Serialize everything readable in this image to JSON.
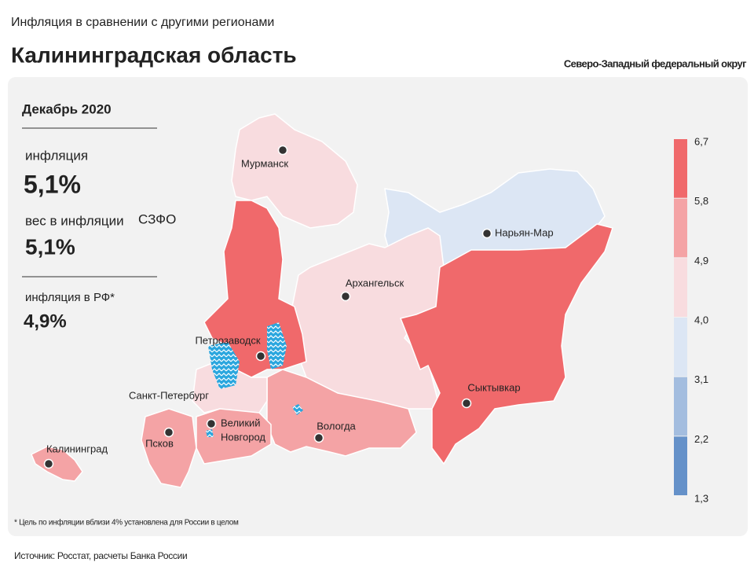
{
  "header": {
    "subtitle": "Инфляция в сравнении с другими регионами",
    "title": "Калининградская область",
    "district": "Северо-Западный федеральный округ"
  },
  "panel": {
    "period": "Декабрь 2020",
    "stats": [
      {
        "label": "инфляция",
        "value": "5,1%"
      },
      {
        "label": "вес в инфляции",
        "label_suffix": "СЗФО",
        "value": "5,1%"
      },
      {
        "label": "инфляция в РФ*",
        "value": "4,9%"
      }
    ]
  },
  "legend": {
    "ticks": [
      "6,7",
      "5,8",
      "4,9",
      "4,0",
      "3,1",
      "2,2",
      "1,3"
    ],
    "colors": [
      "#f0696b",
      "#f4a3a5",
      "#f8dcdf",
      "#dce6f4",
      "#a3bddf",
      "#6591c9"
    ]
  },
  "cities": [
    "Мурманск",
    "Нарьян-Мар",
    "Архангельск",
    "Петрозаводск",
    "Санкт-Петербург",
    "Сыктывкар",
    "Великий",
    "Новгород",
    "Вологда",
    "Псков",
    "Калининград"
  ],
  "footnote": "* Цель по инфляции вблизи 4% установлена для России в целом",
  "source": "Источник: Росстат, расчеты Банка России"
}
